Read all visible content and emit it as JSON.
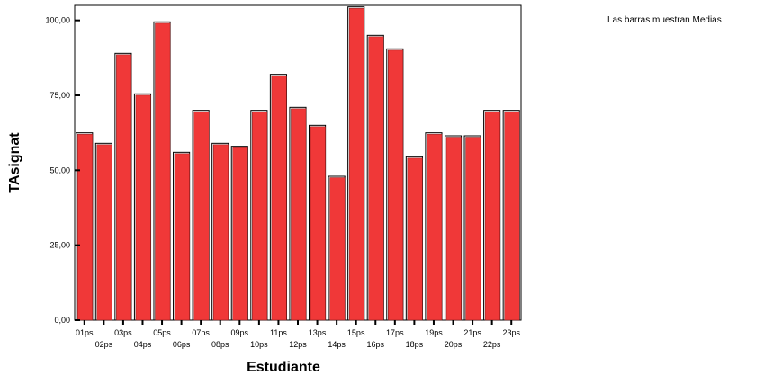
{
  "chart_data": {
    "type": "bar",
    "xlabel": "Estudiante",
    "ylabel": "TAsignat",
    "note": "Las barras muestran Medias",
    "ylim": [
      0,
      105
    ],
    "yticks": [
      "0,00",
      "25,00",
      "50,00",
      "75,00",
      "100,00"
    ],
    "ytick_values": [
      0,
      25,
      50,
      75,
      100
    ],
    "categories": [
      "01ps",
      "02ps",
      "03ps",
      "04ps",
      "05ps",
      "06ps",
      "07ps",
      "08ps",
      "09ps",
      "10ps",
      "11ps",
      "12ps",
      "13ps",
      "14ps",
      "15ps",
      "16ps",
      "17ps",
      "18ps",
      "19ps",
      "20ps",
      "21ps",
      "22ps",
      "23ps"
    ],
    "values": [
      62.5,
      59.0,
      89.0,
      75.5,
      99.5,
      56.0,
      70.0,
      59.0,
      58.0,
      70.0,
      82.0,
      71.0,
      65.0,
      48.0,
      104.5,
      95.0,
      90.5,
      54.5,
      62.5,
      61.5,
      61.5,
      70.0,
      70.0
    ],
    "grid": false,
    "bar_color": "#f03838"
  }
}
